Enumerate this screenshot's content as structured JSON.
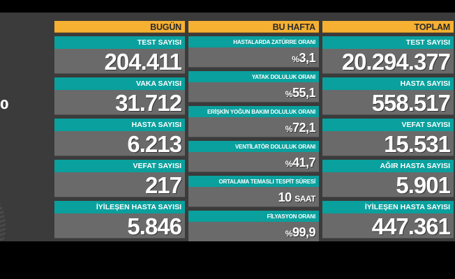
{
  "side_fragment": {
    "text": "0"
  },
  "columns": [
    {
      "header": "BUGÜN",
      "cards": [
        {
          "label": "TEST SAYISI",
          "value": "204.411"
        },
        {
          "label": "VAKA SAYISI",
          "value": "31.712"
        },
        {
          "label": "HASTA SAYISI",
          "value": "6.213"
        },
        {
          "label": "VEFAT SAYISI",
          "value": "217"
        },
        {
          "label": "İYİLEŞEN HASTA SAYISI",
          "value": "5.846"
        }
      ]
    },
    {
      "header": "BU HAFTA",
      "cards": [
        {
          "label": "HASTALARDA ZATÜRRE ORANI",
          "prefix": "%",
          "value": "3,1"
        },
        {
          "label": "YATAK DOLULUK ORANI",
          "prefix": "%",
          "value": "55,1"
        },
        {
          "label": "ERİŞKİN YOĞUN BAKIM DOLULUK ORANI",
          "prefix": "%",
          "value": "72,1"
        },
        {
          "label": "VENTİLATÖR DOLULUK ORANI",
          "prefix": "%",
          "value": "41,7"
        },
        {
          "label": "ORTALAMA TEMASLI TESPİT SÜRESİ",
          "value": "10",
          "unit": "SAAT"
        },
        {
          "label": "FİLYASYON ORANI",
          "prefix": "%",
          "value": "99,9"
        }
      ]
    },
    {
      "header": "TOPLAM",
      "cards": [
        {
          "label": "TEST SAYISI",
          "value": "20.294.377"
        },
        {
          "label": "HASTA SAYISI",
          "value": "558.517"
        },
        {
          "label": "VEFAT SAYISI",
          "value": "15.531"
        },
        {
          "label": "AĞIR HASTA SAYISI",
          "value": "5.901"
        },
        {
          "label": "İYİLEŞEN HASTA SAYISI",
          "value": "447.361"
        }
      ]
    }
  ],
  "colors": {
    "header": "#f6b032",
    "label": "#0aa09d",
    "value_bg": "#6a6a6a",
    "background": "#3b3b3b"
  }
}
